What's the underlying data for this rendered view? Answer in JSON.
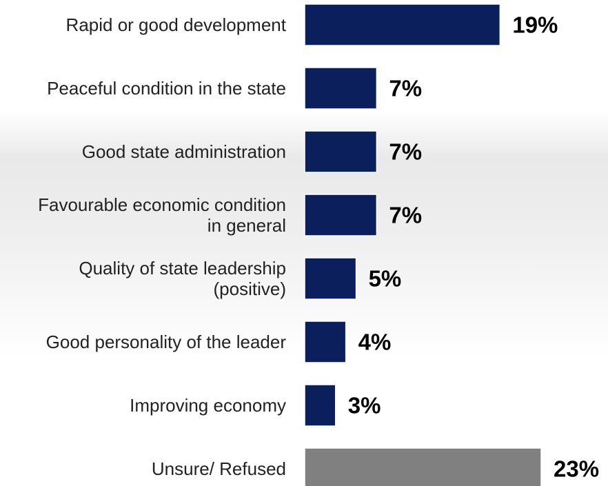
{
  "chart_data": {
    "type": "bar",
    "orientation": "horizontal",
    "categories": [
      [
        "Rapid or good development"
      ],
      [
        "Peaceful condition in the state"
      ],
      [
        "Good state administration"
      ],
      [
        "Favourable economic condition",
        "in general"
      ],
      [
        "Quality of state leadership",
        "(positive)"
      ],
      [
        "Good personality of the leader"
      ],
      [
        "Improving economy"
      ],
      [
        "Unsure/ Refused"
      ]
    ],
    "values": [
      19,
      7,
      7,
      7,
      5,
      4,
      3,
      23
    ],
    "value_labels": [
      "19%",
      "7%",
      "7%",
      "7%",
      "5%",
      "4%",
      "3%",
      "23%"
    ],
    "unit": "%",
    "title": "",
    "xlabel": "",
    "ylabel": "",
    "xlim": [
      0,
      23
    ],
    "grid": false,
    "legend": "none",
    "colors": {
      "primary_bar": "#0a1f5c",
      "highlight_bar": "#808080",
      "bar_outline": "#ffffff",
      "label_text": "#222222",
      "value_text": "#000000"
    },
    "highlight_index": 7
  }
}
